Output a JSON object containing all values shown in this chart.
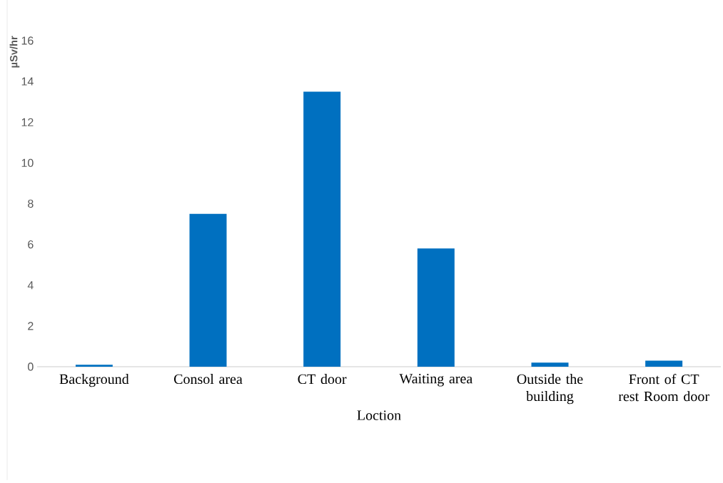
{
  "chart_data": {
    "type": "bar",
    "xlabel": "Loction",
    "ylabel": "µSv/hr",
    "categories": [
      "Background",
      "Consol area",
      "CT door",
      "Waiting area",
      "Outside the building",
      "Front of CT rest Room door"
    ],
    "values": [
      0.1,
      7.5,
      13.5,
      5.8,
      0.2,
      0.3
    ],
    "color": "#0070c0",
    "ylim": [
      0,
      16
    ],
    "yticks": [
      0,
      2,
      4,
      6,
      8,
      10,
      12,
      14,
      16
    ],
    "grid": false
  }
}
